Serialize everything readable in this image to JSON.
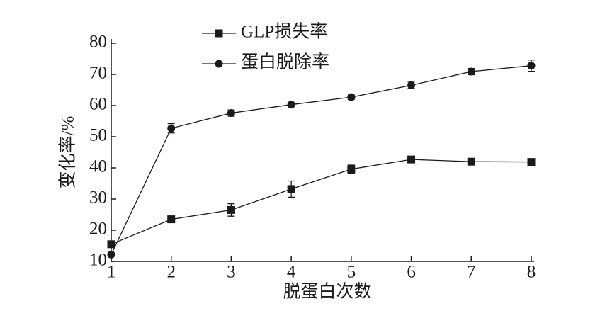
{
  "chart_data": {
    "type": "line",
    "xlabel": "脱蛋白次数",
    "ylabel": "变化率/%",
    "x": [
      1,
      2,
      3,
      4,
      5,
      6,
      7,
      8
    ],
    "xlim": [
      1,
      8
    ],
    "xticks": [
      1,
      2,
      3,
      4,
      5,
      6,
      7,
      8
    ],
    "ylim": [
      10,
      80
    ],
    "yticks": [
      10,
      20,
      30,
      40,
      50,
      60,
      70,
      80
    ],
    "legend": "top-left",
    "series": [
      {
        "name": "GLP损失率",
        "color": "#1a1a1a",
        "marker": "square",
        "values": [
          15.5,
          23.5,
          26.5,
          33.2,
          39.6,
          42.7,
          42.0,
          41.9
        ],
        "errors": [
          0.5,
          0.8,
          2.0,
          2.6,
          1.3,
          0.6,
          0.6,
          0.6
        ]
      },
      {
        "name": "蛋白脱除率",
        "color": "#1a1a1a",
        "marker": "circle",
        "values": [
          12.2,
          52.7,
          57.6,
          60.3,
          62.7,
          66.5,
          70.9,
          72.8
        ],
        "errors": [
          0.5,
          1.5,
          1.0,
          0.6,
          0.7,
          1.0,
          1.0,
          1.8
        ]
      }
    ]
  }
}
